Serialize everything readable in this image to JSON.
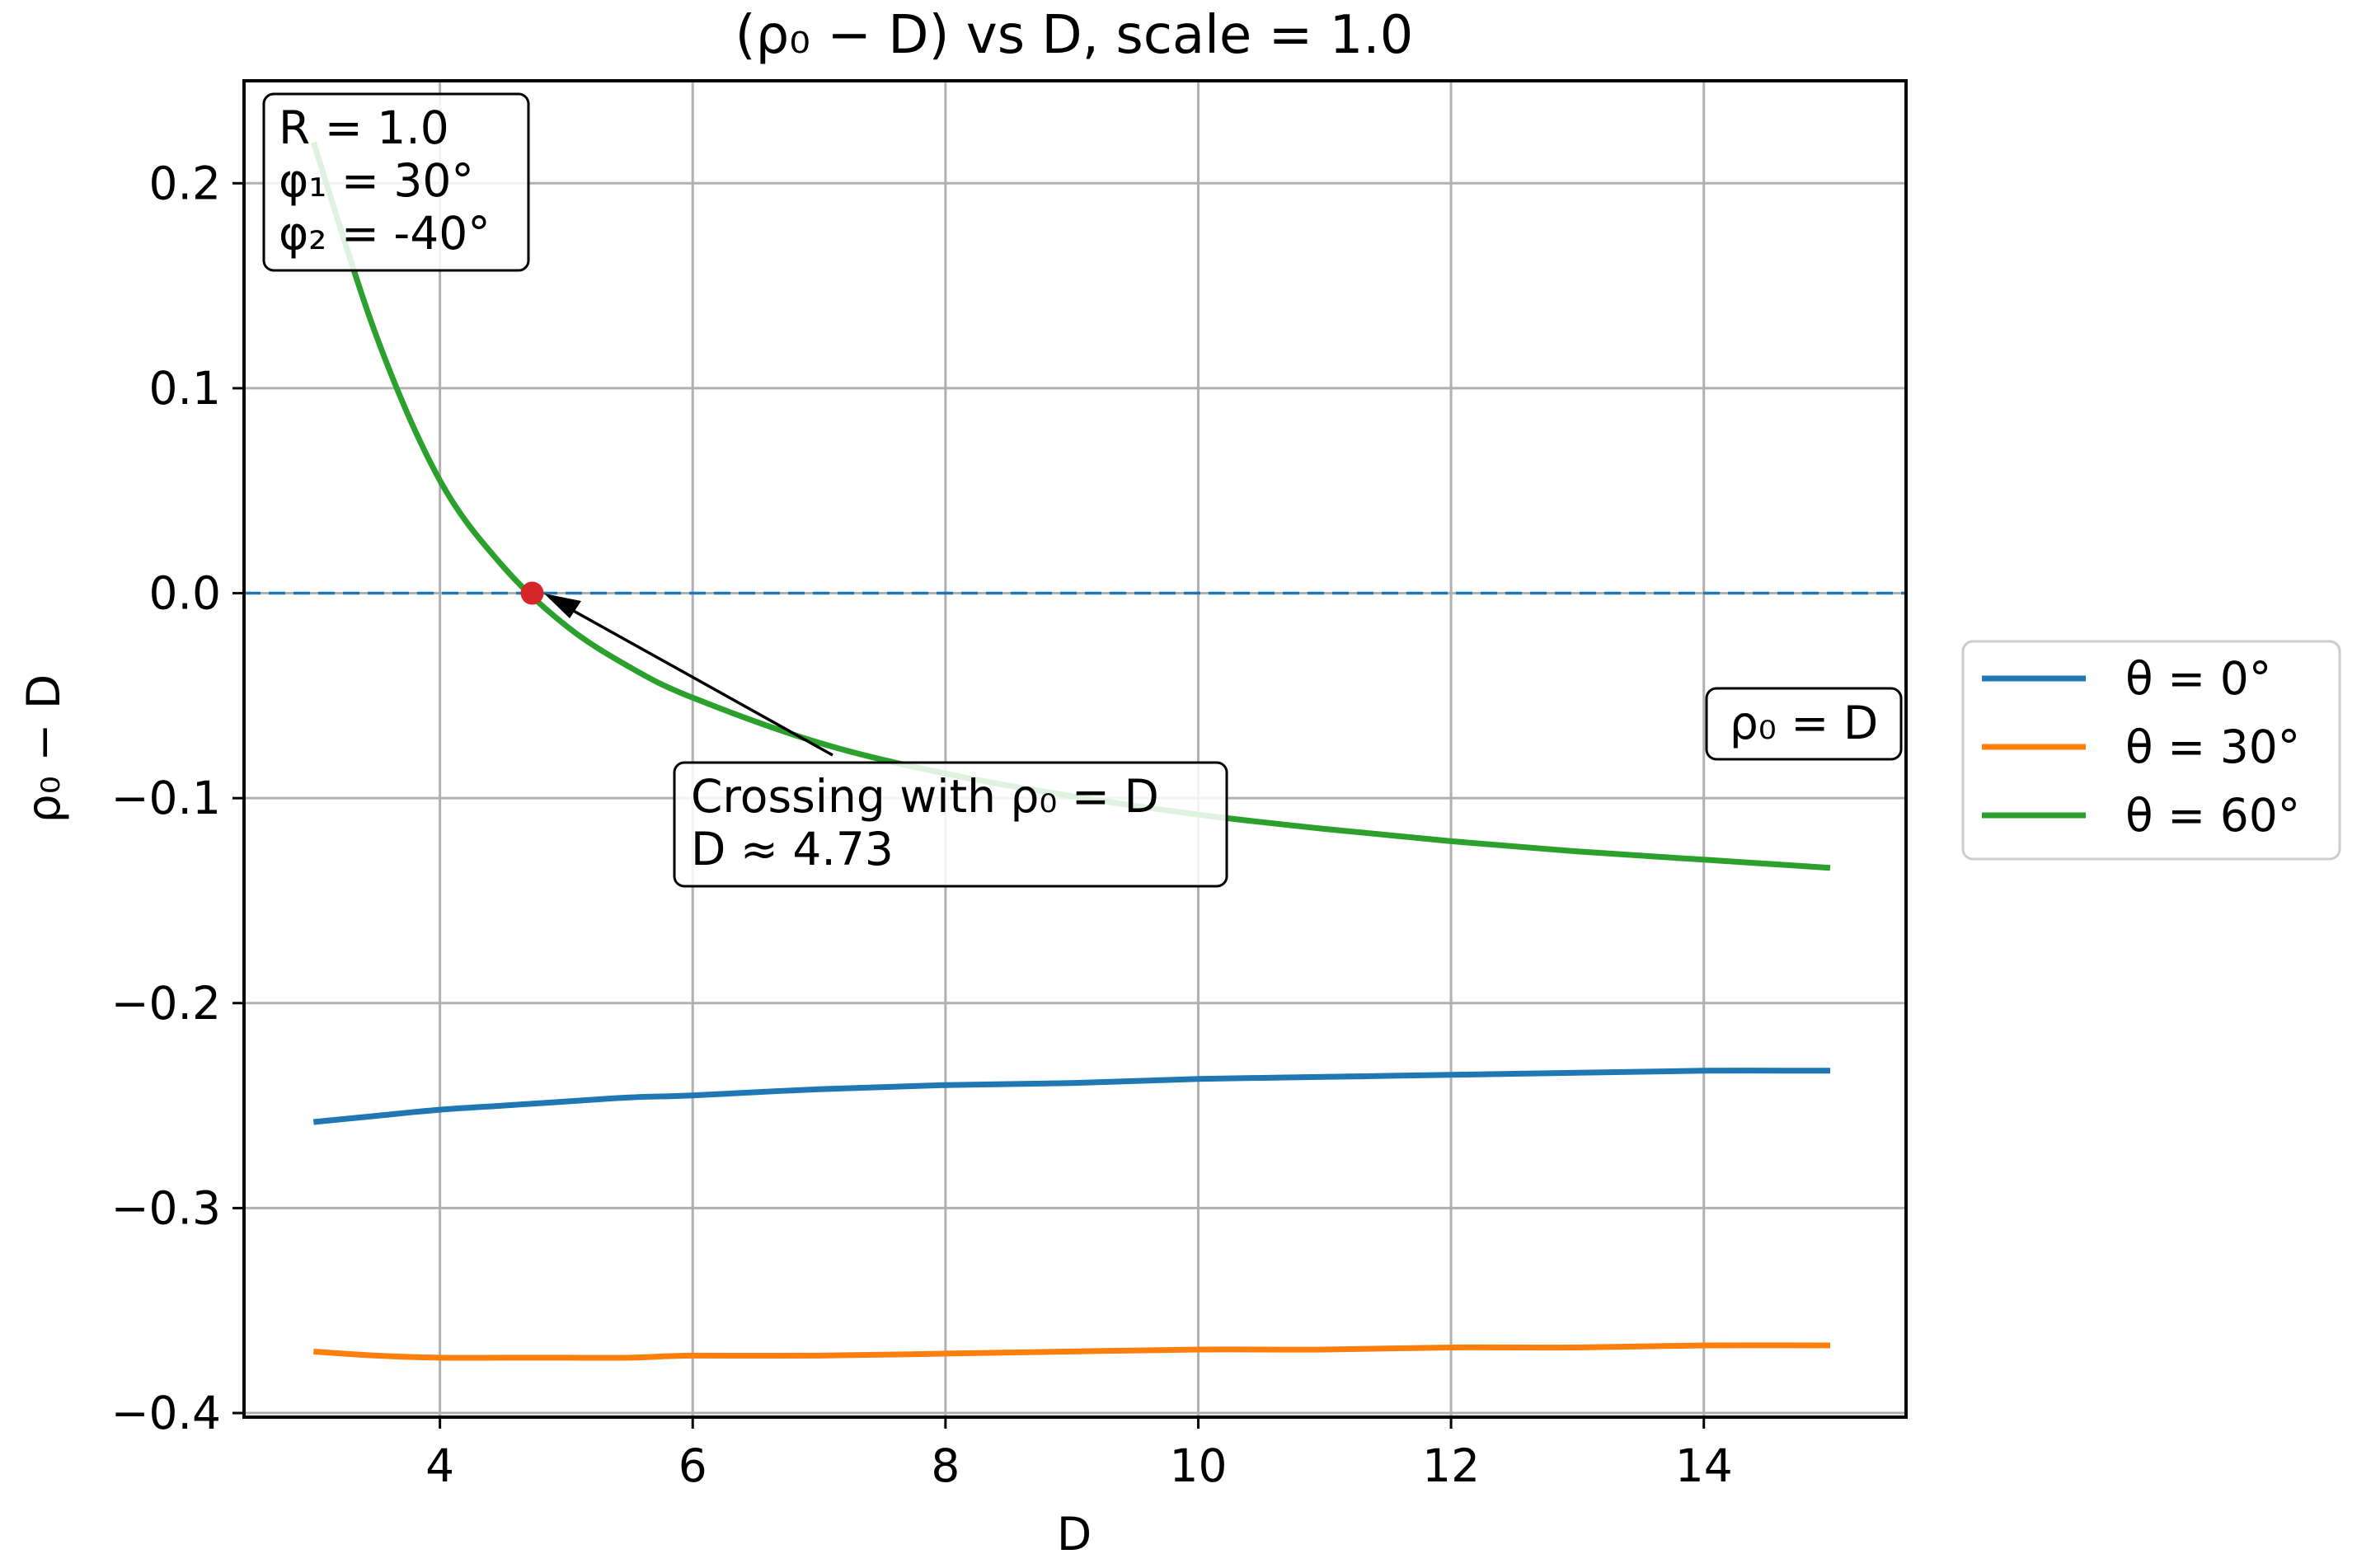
{
  "chart_data": {
    "type": "line",
    "title": "(ρ₀ − D) vs D, scale = 1.0",
    "xlabel": "D",
    "ylabel": "ρ₀ − D",
    "xlim": [
      2.45,
      15.6
    ],
    "ylim": [
      -0.402,
      0.25
    ],
    "xticks": [
      4,
      6,
      8,
      10,
      12,
      14
    ],
    "xtick_labels": [
      "4",
      "6",
      "8",
      "10",
      "12",
      "14"
    ],
    "yticks": [
      0.2,
      0.1,
      0.0,
      -0.1,
      -0.2,
      -0.3,
      -0.4
    ],
    "ytick_labels": [
      "0.2",
      "0.1",
      "0.0",
      "−0.1",
      "−0.2",
      "−0.3",
      "−0.4"
    ],
    "grid": true,
    "legend_position": "outside-right",
    "x": [
      3,
      3.5,
      4,
      4.5,
      5,
      5.5,
      6,
      7,
      8,
      9,
      10,
      11,
      12,
      13,
      14,
      15
    ],
    "series": [
      {
        "name": "θ = 0°",
        "color": "#1f77b4",
        "values": [
          -0.258,
          -0.255,
          -0.252,
          -0.25,
          -0.248,
          -0.246,
          -0.245,
          -0.242,
          -0.24,
          -0.239,
          -0.237,
          -0.236,
          -0.235,
          -0.234,
          -0.233,
          -0.233
        ]
      },
      {
        "name": "θ = 30°",
        "color": "#ff7f0e",
        "values": [
          -0.37,
          -0.372,
          -0.373,
          -0.373,
          -0.373,
          -0.373,
          -0.372,
          -0.372,
          -0.371,
          -0.37,
          -0.369,
          -0.369,
          -0.368,
          -0.368,
          -0.367,
          -0.367
        ]
      },
      {
        "name": "θ = 60°",
        "color": "#2ca02c",
        "values": [
          0.22,
          0.125,
          0.055,
          0.013,
          -0.016,
          -0.036,
          -0.051,
          -0.073,
          -0.088,
          -0.099,
          -0.108,
          -0.115,
          -0.121,
          -0.126,
          -0.13,
          -0.134
        ]
      }
    ],
    "reference_line": {
      "y": 0.0,
      "color": "#1f77b4",
      "style": "dashed",
      "label": "ρ₀ = D"
    },
    "crossing_point": {
      "x": 4.73,
      "y": 0.0,
      "color": "#d62728"
    },
    "annotations": {
      "params_box": [
        "R = 1.0",
        "φ₁ = 30°",
        "φ₂ = -40°"
      ],
      "crossing_box": [
        "Crossing with ρ₀ = D",
        "D ≈ 4.73"
      ]
    }
  }
}
